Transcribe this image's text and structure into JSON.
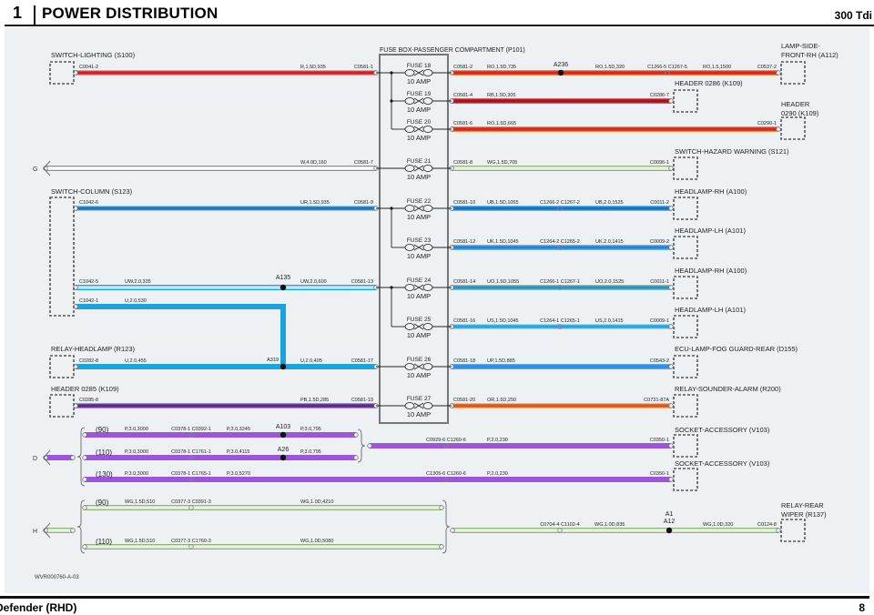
{
  "header": {
    "section_number": "1",
    "title": "POWER DISTRIBUTION",
    "model": "300 Tdi"
  },
  "footer": {
    "vehicle": "Defender (RHD)",
    "page": "8",
    "reference": "WVR000760-A-03"
  },
  "fuse_box": {
    "title": "FUSE BOX-PASSENGER COMPARTMENT (P101)",
    "fuses": [
      {
        "name": "FUSE 18",
        "rating": "10 AMP"
      },
      {
        "name": "FUSE 19",
        "rating": "10 AMP"
      },
      {
        "name": "FUSE 20",
        "rating": "10 AMP"
      },
      {
        "name": "FUSE 21",
        "rating": "10 AMP"
      },
      {
        "name": "FUSE 22",
        "rating": "10 AMP"
      },
      {
        "name": "FUSE 23",
        "rating": "10 AMP"
      },
      {
        "name": "FUSE 24",
        "rating": "10 AMP"
      },
      {
        "name": "FUSE 25",
        "rating": "10 AMP"
      },
      {
        "name": "FUSE 26",
        "rating": "10 AMP"
      },
      {
        "name": "FUSE 27",
        "rating": "10 AMP"
      }
    ]
  },
  "off_page": [
    {
      "label": "G"
    },
    {
      "label": "D"
    },
    {
      "label": "H"
    }
  ],
  "components": [
    {
      "id": "S100",
      "lines": [
        "SWITCH-LIGHTING (S100)"
      ]
    },
    {
      "id": "S123",
      "lines": [
        "SWITCH-COLUMN (S123)"
      ]
    },
    {
      "id": "R123",
      "lines": [
        "RELAY-HEADLAMP (R123)"
      ]
    },
    {
      "id": "K109a",
      "lines": [
        "HEADER 0285 (K109)"
      ]
    },
    {
      "id": "A112",
      "lines": [
        "LAMP-SIDE-",
        "FRONT-RH (A112)"
      ]
    },
    {
      "id": "K109b",
      "lines": [
        "HEADER 0286 (K109)"
      ]
    },
    {
      "id": "K109c",
      "lines": [
        "HEADER",
        "0290 (K109)"
      ]
    },
    {
      "id": "S121",
      "lines": [
        "SWITCH-HAZARD WARNING (S121)"
      ]
    },
    {
      "id": "A100a",
      "lines": [
        "HEADLAMP-RH (A100)"
      ]
    },
    {
      "id": "A101a",
      "lines": [
        "HEADLAMP-LH (A101)"
      ]
    },
    {
      "id": "A100b",
      "lines": [
        "HEADLAMP-RH (A100)"
      ]
    },
    {
      "id": "A101b",
      "lines": [
        "HEADLAMP-LH (A101)"
      ]
    },
    {
      "id": "D155",
      "lines": [
        "ECU-LAMP-FOG GUARD-REAR (D155)"
      ]
    },
    {
      "id": "R200",
      "lines": [
        "RELAY-SOUNDER-ALARM (R200)"
      ]
    },
    {
      "id": "V103a",
      "lines": [
        "SOCKET-ACCESSORY (V103)"
      ]
    },
    {
      "id": "V103b",
      "lines": [
        "SOCKET-ACCESSORY (V103)"
      ]
    },
    {
      "id": "R137",
      "lines": [
        "RELAY-REAR",
        "WIPER (R137)"
      ]
    }
  ],
  "wire_colors": {
    "R": {
      "core": "#d11f26",
      "edge": "#e99a9a"
    },
    "RO": {
      "core": "#d9261e",
      "edge": "#f08a4a"
    },
    "RB": {
      "core": "#a8101c",
      "edge": "#d4606a"
    },
    "W": {
      "core": "#ffffff",
      "edge": "#8a8f96"
    },
    "WG": {
      "core": "#e8f2df",
      "edge": "#8fb47a"
    },
    "UR": {
      "core": "#2c6fb5",
      "edge": "#7fd0f2"
    },
    "U": {
      "core": "#1ba3de",
      "edge": "#1ba3de"
    },
    "UW": {
      "core": "#bfe8f8",
      "edge": "#1ba3de"
    },
    "UB": {
      "core": "#1f6fbf",
      "edge": "#58c0ee"
    },
    "UK": {
      "core": "#2a82d4",
      "edge": "#6cb8ee"
    },
    "UO": {
      "core": "#3c8fae",
      "edge": "#74c4e4"
    },
    "US": {
      "core": "#2fa0e0",
      "edge": "#9ad8f4"
    },
    "UP": {
      "core": "#2f8ee0",
      "edge": "#5aa6ee"
    },
    "PB": {
      "core": "#5a2a8c",
      "edge": "#a784d6"
    },
    "OR": {
      "core": "#df5418",
      "edge": "#f3b27a"
    },
    "P": {
      "core": "#9c55dc",
      "edge": "#9c55dc"
    },
    "D": {
      "core": "#9c55dc",
      "edge": "#9c55dc"
    }
  },
  "wires": [
    {
      "id": "L1",
      "code": "R",
      "labels": [
        "C0041-2",
        "R,1.5D,935",
        "C0581-1"
      ]
    },
    {
      "id": "L2",
      "code": "W",
      "labels": [
        "W,4.0D,160",
        "C0581-7"
      ]
    },
    {
      "id": "L3",
      "code": "UR",
      "labels": [
        "C1042-6",
        "UR,1.5D,935",
        "C0581-9"
      ]
    },
    {
      "id": "L4",
      "code": "UW",
      "labels": [
        "C1042-5",
        "UW,2.0,335",
        "A135",
        "UW,2.0,600",
        "C0581-13"
      ]
    },
    {
      "id": "L5",
      "code": "U",
      "labels": [
        "C1042-1",
        "U,2.0,530"
      ]
    },
    {
      "id": "L6",
      "code": "U",
      "labels": [
        "C0282-8",
        "U,2.0,455",
        "A319",
        "U,2.0,405",
        "C0581-17"
      ]
    },
    {
      "id": "L7",
      "code": "PB",
      "labels": [
        "C0285-8",
        "PB,1.5D,285",
        "C0581-19"
      ]
    },
    {
      "id": "R1",
      "code": "RO",
      "labels": [
        "C0581-2",
        "RO,1.5D,735",
        "A236",
        "RO,1.5D,320",
        "C1266-5 C1267-5",
        "RO,1.5,1500",
        "C0537-2"
      ]
    },
    {
      "id": "R2",
      "code": "RB",
      "labels": [
        "C0581-4",
        "RB,1.5D,305",
        "C0286-7"
      ]
    },
    {
      "id": "R3",
      "code": "RO",
      "labels": [
        "C0581-6",
        "RO,1.5D,665",
        "C0290-1"
      ]
    },
    {
      "id": "R4",
      "code": "WG",
      "labels": [
        "C0581-8",
        "WG,1.5D,705",
        "C0096-1"
      ]
    },
    {
      "id": "R5",
      "code": "UB",
      "labels": [
        "C0581-10",
        "UB,1.5D,1055",
        "C1266-2 C1267-2",
        "UB,2.0,1525",
        "C0011-2"
      ]
    },
    {
      "id": "R6",
      "code": "UK",
      "labels": [
        "C0581-12",
        "UK,1.5D,1045",
        "C1264-2 C1265-2",
        "UK,2.0,1415",
        "C0009-2"
      ]
    },
    {
      "id": "R7",
      "code": "UO",
      "labels": [
        "C0581-14",
        "UO,1.5D,1055",
        "C1266-1 C1267-1",
        "UO,2.0,1525",
        "C0011-1"
      ]
    },
    {
      "id": "R8",
      "code": "US",
      "labels": [
        "C0581-16",
        "US,1.5D,1045",
        "C1264-1 C1265-1",
        "US,2.0,1415",
        "C0009-1"
      ]
    },
    {
      "id": "R9",
      "code": "UP",
      "labels": [
        "C0581-18",
        "UP,1.5D,885",
        "C0543-2"
      ]
    },
    {
      "id": "R10",
      "code": "OR",
      "labels": [
        "C0581-20",
        "OR,1.5D,250",
        "C0731-87A"
      ]
    },
    {
      "id": "DF",
      "code": "D",
      "labels": []
    },
    {
      "id": "D1",
      "code": "P",
      "labels": [
        "(90)",
        "P,3.0,3000",
        "C0378-1 C0392-1",
        "P,3.0,3245",
        "A103",
        "P,3.0,795"
      ]
    },
    {
      "id": "D2",
      "code": "P",
      "labels": [
        "(110)",
        "P,3.0,3000",
        "C0378-1 C1761-1",
        "P,3.0,4115",
        "A26",
        "P,3.0,795"
      ]
    },
    {
      "id": "D3",
      "code": "P",
      "labels": [
        "(130)",
        "P,3.0,3000",
        "C0378-1 C1765-1",
        "P,3.0,5270",
        "C1305-6 C1260-6",
        "P,2.0,230",
        "C0350-1"
      ]
    },
    {
      "id": "D4",
      "code": "P",
      "labels": [
        "C0929-6 C1260-6",
        "P,2.0,230",
        "C0350-1"
      ]
    },
    {
      "id": "HF",
      "code": "WG",
      "labels": []
    },
    {
      "id": "H1",
      "code": "WG",
      "labels": [
        "(90)",
        "WG,1.5D,510",
        "C0377-3 C0391-3",
        "WG,1.0D,4210"
      ]
    },
    {
      "id": "H2",
      "code": "WG",
      "labels": [
        "(110)",
        "WG,1.5D,510",
        "C0377-3 C1760-3",
        "WG,1.0D,5080"
      ]
    },
    {
      "id": "H3",
      "code": "WG",
      "labels": [
        "C0704-4 C1102-4",
        "WG,1.0D,835",
        "A1",
        "A12",
        "WG,1.0D,320",
        "C0124-8"
      ]
    }
  ]
}
